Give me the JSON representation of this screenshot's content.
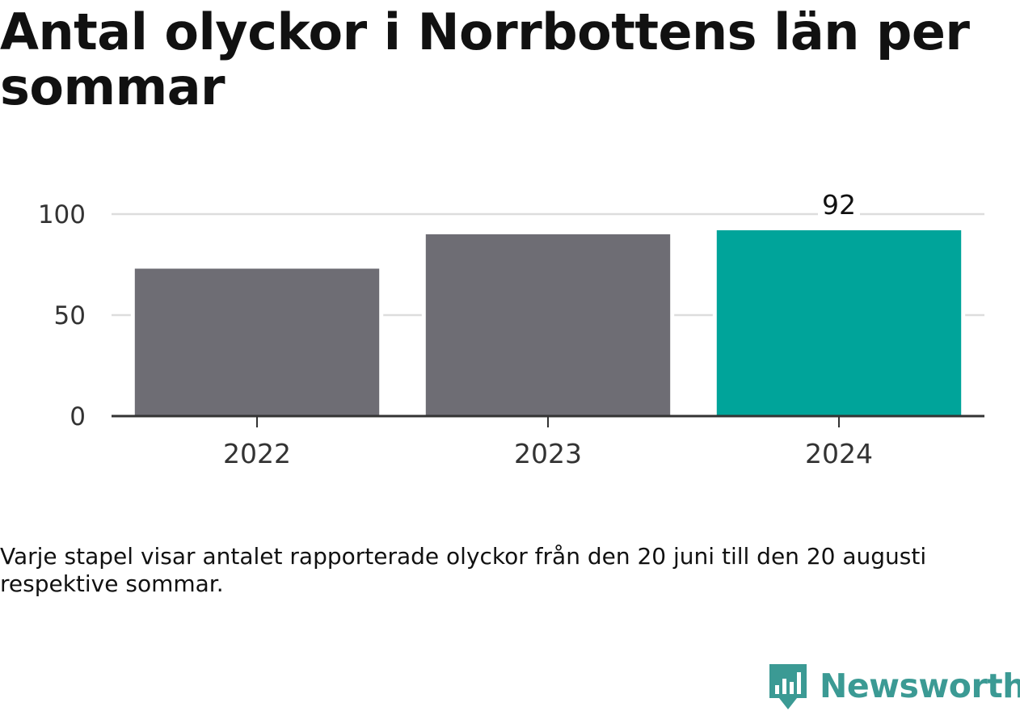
{
  "title": "Antal olyckor i Norrbottens län per sommar",
  "note": "Varje stapel visar antalet rapporterade olyckor från den 20 juni till den 20 augusti respektive sommar.",
  "brand": {
    "name": "Newsworthy",
    "logo_icon": "newsworthy-logo-icon",
    "color": "#3b9a94"
  },
  "chart_data": {
    "type": "bar",
    "title": "Antal olyckor i Norrbottens län per sommar",
    "xlabel": "",
    "ylabel": "",
    "categories": [
      "2022",
      "2023",
      "2024"
    ],
    "values": [
      73,
      90,
      92
    ],
    "ylim": [
      0,
      100
    ],
    "yticks": [
      0,
      50,
      100
    ],
    "data_labels": [
      "",
      "",
      "92"
    ],
    "colors": [
      "#6e6d74",
      "#6e6d74",
      "#00a49a"
    ],
    "grid": true,
    "legend": "none"
  }
}
